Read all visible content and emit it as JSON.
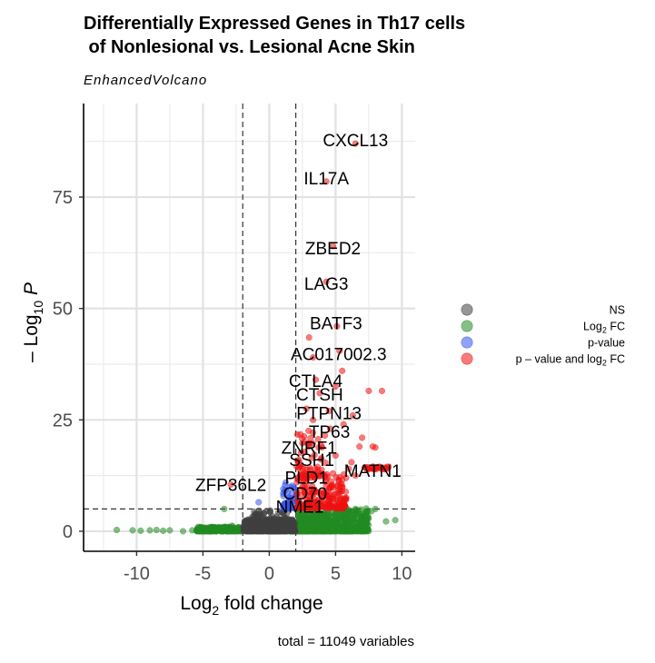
{
  "chart_data": {
    "type": "scatter",
    "title_line1": "Differentially Expressed Genes in Th17 cells",
    "title_line2": " of Nonlesional vs. Lesional Acne Skin",
    "subtitle": "EnhancedVolcano",
    "xlabel": "Log",
    "xlabel_sub": "2",
    "xlabel_tail": " fold change",
    "ylabel_prefix": "– Log",
    "ylabel_sub": "10",
    "ylabel_tail": " P",
    "xlim": [
      -14,
      11
    ],
    "ylim": [
      -4.5,
      96
    ],
    "x_ticks": [
      -10,
      -5,
      0,
      5,
      10
    ],
    "x_tick_labels": [
      "-10",
      "-5",
      "0",
      "5",
      "10"
    ],
    "y_ticks": [
      0,
      25,
      50,
      75
    ],
    "y_tick_labels": [
      "0",
      "25",
      "50",
      "75"
    ],
    "grid": true,
    "fc_cutoff": [
      -2,
      2
    ],
    "p_cutoff_y": 5,
    "caption": "total = 11049 variables",
    "legend": {
      "position": "right",
      "entries": [
        {
          "key": "ns",
          "label": "NS",
          "color": "#404040"
        },
        {
          "key": "fc",
          "label": "Log",
          "sub": "2",
          "tail": " FC",
          "color": "#228b22"
        },
        {
          "key": "p",
          "label": "p-value",
          "color": "#3355ee"
        },
        {
          "key": "both",
          "label": "p – value and log",
          "sub": "2",
          "tail": " FC",
          "color": "#ee1111"
        }
      ]
    },
    "colors": {
      "ns": "#404040",
      "fc": "#228b22",
      "p": "#3355ee",
      "both": "#ee1111"
    },
    "labeled_genes": [
      {
        "name": "CXCL13",
        "x": 6.5,
        "y": 87.0
      },
      {
        "name": "IL17A",
        "x": 4.3,
        "y": 78.5
      },
      {
        "name": "ZBED2",
        "x": 4.8,
        "y": 64.0
      },
      {
        "name": "LAG3",
        "x": 4.3,
        "y": 56.0
      },
      {
        "name": "BATF3",
        "x": 5.1,
        "y": 46.0
      },
      {
        "name": "AC017002.3",
        "x": 5.3,
        "y": 40.5
      },
      {
        "name": "CTLA4",
        "x": 3.5,
        "y": 34.0
      },
      {
        "name": "CTSH",
        "x": 3.8,
        "y": 31.0
      },
      {
        "name": "PTPN13",
        "x": 4.5,
        "y": 27.0
      },
      {
        "name": "TP63",
        "x": 4.6,
        "y": 23.0
      },
      {
        "name": "ZNRF1",
        "x": 3.0,
        "y": 19.0
      },
      {
        "name": "SSH1",
        "x": 3.2,
        "y": 16.5
      },
      {
        "name": "MATN1",
        "x": 7.8,
        "y": 14.0
      },
      {
        "name": "PLD1",
        "x": 2.8,
        "y": 12.5
      },
      {
        "name": "ZFP36L2",
        "x": -2.9,
        "y": 10.5
      },
      {
        "name": "CD70",
        "x": 2.7,
        "y": 9.0
      },
      {
        "name": "NME1",
        "x": 2.3,
        "y": 6.0
      }
    ],
    "highlight_points": {
      "both": [
        [
          8.5,
          31.5
        ],
        [
          7.5,
          31.5
        ],
        [
          5.5,
          36.0
        ],
        [
          5.0,
          32.5
        ],
        [
          6.3,
          26.0
        ],
        [
          5.6,
          24.0
        ],
        [
          7.0,
          21.0
        ],
        [
          6.8,
          19.0
        ],
        [
          7.8,
          19.0
        ],
        [
          8.0,
          18.8
        ],
        [
          4.2,
          21.5
        ],
        [
          3.3,
          25.0
        ],
        [
          5.0,
          17.0
        ],
        [
          6.2,
          15.5
        ],
        [
          6.0,
          14.0
        ],
        [
          6.5,
          12.5
        ],
        [
          5.5,
          11.5
        ],
        [
          4.2,
          8.5
        ],
        [
          5.8,
          7.5
        ],
        [
          4.5,
          6.8
        ],
        [
          3.9,
          5.7
        ],
        [
          5.5,
          6.0
        ],
        [
          2.5,
          10.0
        ],
        [
          2.7,
          20.0
        ],
        [
          3.3,
          39.0
        ],
        [
          3.0,
          43.5
        ],
        [
          2.8,
          27.5
        ]
      ],
      "p": [
        [
          -0.8,
          6.5
        ],
        [
          1.7,
          8.5
        ],
        [
          1.6,
          7.0
        ],
        [
          1.8,
          6.2
        ],
        [
          1.5,
          5.5
        ],
        [
          1.9,
          9.5
        ],
        [
          1.7,
          10.2
        ],
        [
          1.4,
          5.8
        ],
        [
          1.9,
          7.6
        ]
      ],
      "fc": [
        [
          -11.5,
          0.3
        ],
        [
          -10.3,
          0.2
        ],
        [
          -9.7,
          0.1
        ],
        [
          -9.0,
          0.2
        ],
        [
          -8.5,
          0.3
        ],
        [
          -8.0,
          0.1
        ],
        [
          -7.5,
          0.2
        ],
        [
          -6.5,
          0.0
        ],
        [
          -5.8,
          0.2
        ],
        [
          -4.8,
          0.1
        ],
        [
          -4.2,
          0.3
        ],
        [
          -3.6,
          0.4
        ],
        [
          -3.0,
          0.2
        ],
        [
          -2.4,
          0.5
        ],
        [
          -2.8,
          1.2
        ],
        [
          8.0,
          5.0
        ],
        [
          7.3,
          5.1
        ],
        [
          6.5,
          5.0
        ],
        [
          9.5,
          2.5
        ],
        [
          8.8,
          2.2
        ],
        [
          6.0,
          4.8
        ],
        [
          7.7,
          4.5
        ],
        [
          -3.4,
          5.0
        ]
      ]
    },
    "dense_bands": [
      {
        "group": "fc",
        "xmin": -5.5,
        "xmax": -2.05,
        "ymin": 0.0,
        "ymax": 1.0,
        "count": 260
      },
      {
        "group": "fc",
        "xmin": 2.05,
        "xmax": 7.5,
        "ymin": 0.0,
        "ymax": 4.9,
        "count": 620
      },
      {
        "group": "fc",
        "xmin": 2.05,
        "xmax": 4.6,
        "ymin": 0.0,
        "ymax": 2.5,
        "count": 340
      },
      {
        "group": "ns",
        "xmin": -1.95,
        "xmax": 1.95,
        "ymin": 0.0,
        "ymax": 2.8,
        "count": 520
      },
      {
        "group": "ns",
        "xmin": -1.4,
        "xmax": 1.4,
        "ymin": 0.0,
        "ymax": 4.7,
        "count": 160
      },
      {
        "group": "both",
        "xmin": 2.05,
        "xmax": 5.8,
        "ymin": 5.2,
        "ymax": 13.0,
        "count": 210
      },
      {
        "group": "both",
        "xmin": 2.05,
        "xmax": 4.3,
        "ymin": 12.0,
        "ymax": 24.0,
        "count": 60
      },
      {
        "group": "p",
        "xmin": 1.0,
        "xmax": 1.95,
        "ymin": 5.1,
        "ymax": 11.0,
        "count": 40
      }
    ],
    "matn1_band": {
      "xmin": 7.2,
      "xmax": 9.0,
      "y": 14.2
    }
  }
}
